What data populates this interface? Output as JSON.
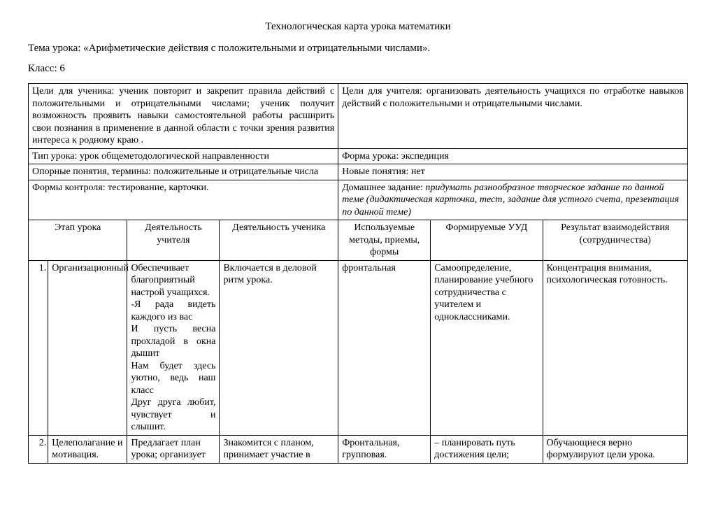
{
  "title": "Технологическая карта урока математики",
  "topic_label": "Тема урока:  «Арифметические действия с положительными и отрицательными числами».",
  "class_label": "Класс: 6",
  "block1": {
    "student_goals": "Цели для ученика: ученик повторит и закрепит правила действий с положительными и отрицательными числами; ученик получит возможность проявить навыки самостоятельной работы расширить свои познания в применение в данной области с точки зрения развития интереса к родному краю .",
    "teacher_goals": "Цели для учителя: организовать деятельность учащихся по отработке навыков действий с положительными и отрицательными числами.",
    "lesson_type": "Тип урока: урок общеметодологической направленности",
    "lesson_form": "Форма урока: экспедиция",
    "support_terms": "Опорные понятия, термины: положительные и отрицательные числа",
    "new_terms": "Новые понятия: нет",
    "control_forms": "Формы контроля: тестирование, карточки.",
    "homework_prefix": "Домашнее задание: ",
    "homework_italic": "придумать разнообразное творческое задание по данной теме (дидактическая карточка, тест, задание для устного счета, презентация по данной теме)"
  },
  "columns": {
    "c1": "Этап урока",
    "c2": "Деятельность учителя",
    "c3": "Деятельность ученика",
    "c4": "Используемые методы, приемы, формы",
    "c5": "Формируемые УУД",
    "c6": "Результат взаимодействия (сотрудничества)"
  },
  "rows": {
    "r1": {
      "num": "1.",
      "stage": "Организационный",
      "teacher": "Обеспечивает благоприятный настрой учащихся.\n-Я рада видеть каждого из вас\nИ пусть весна прохладой в окна дышит\nНам будет здесь уютно, ведь наш класс\nДруг друга любит, чувствует и слышит.",
      "student": "Включается в деловой ритм урока.",
      "methods": "фронтальная",
      "uud": "Самоопределение, планирование учебного сотрудничества с учителем и одноклассниками.",
      "result": "Концентрация внимания, психологическая готовность."
    },
    "r2": {
      "num": "2.",
      "stage": "Целеполагание и мотивация.",
      "teacher": "Предлагает план урока;  организует",
      "student": "Знакомится с планом, принимает участие в",
      "methods": "Фронтальная, групповая.",
      "uud": "– планировать путь достижения цели;",
      "result": "Обучающиеся верно формулируют цели урока."
    }
  },
  "colwidths": {
    "num": "3%",
    "stage": "12%",
    "teacher": "14%",
    "student": "18%",
    "methods": "14%",
    "uud": "17%",
    "result": "22%"
  }
}
